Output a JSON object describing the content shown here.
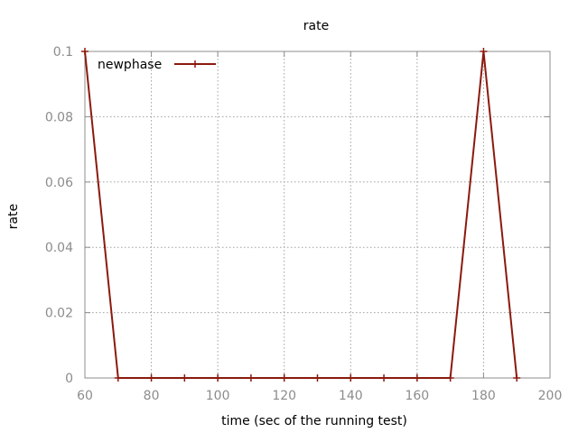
{
  "chart_data": {
    "type": "line",
    "title": "rate",
    "xlabel": "time (sec of the running test)",
    "ylabel": "rate",
    "xlim": [
      60,
      200
    ],
    "ylim": [
      0,
      0.1
    ],
    "x_ticks": [
      60,
      80,
      100,
      120,
      140,
      160,
      180,
      200
    ],
    "x_tick_labels": [
      "60",
      "80",
      "100",
      "120",
      "140",
      "160",
      "180",
      "200"
    ],
    "y_ticks": [
      0,
      0.02,
      0.04,
      0.06,
      0.08,
      0.1
    ],
    "y_tick_labels": [
      "0",
      "0.02",
      "0.04",
      "0.06",
      "0.08",
      "0.1"
    ],
    "grid": true,
    "legend_position": "top-left",
    "series": [
      {
        "name": "newphase",
        "color": "#8b1a0e",
        "marker": "plus",
        "x": [
          60,
          70,
          80,
          90,
          100,
          110,
          120,
          130,
          140,
          150,
          160,
          170,
          180,
          190
        ],
        "y": [
          0.1,
          0,
          0,
          0,
          0,
          0,
          0,
          0,
          0,
          0,
          0,
          0,
          0.1,
          0
        ]
      }
    ]
  }
}
